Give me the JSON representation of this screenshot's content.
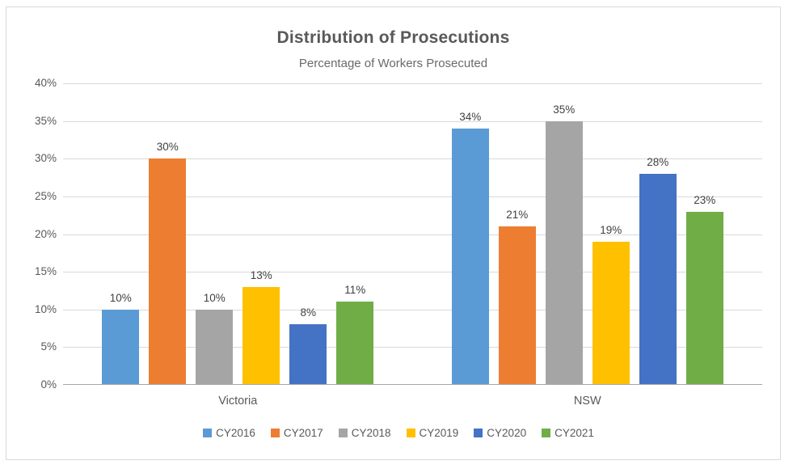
{
  "chart_data": {
    "type": "bar",
    "title": "Distribution of Prosecutions",
    "subtitle": "Percentage of Workers Prosecuted",
    "categories": [
      "Victoria",
      "NSW"
    ],
    "series": [
      {
        "name": "CY2016",
        "color": "#5B9BD5",
        "values": [
          10,
          34
        ]
      },
      {
        "name": "CY2017",
        "color": "#ED7D31",
        "values": [
          30,
          21
        ]
      },
      {
        "name": "CY2018",
        "color": "#A5A5A5",
        "values": [
          10,
          35
        ]
      },
      {
        "name": "CY2019",
        "color": "#FFC000",
        "values": [
          13,
          19
        ]
      },
      {
        "name": "CY2020",
        "color": "#4472C4",
        "values": [
          8,
          28
        ]
      },
      {
        "name": "CY2021",
        "color": "#70AD47",
        "values": [
          11,
          23
        ]
      }
    ],
    "data_labels": [
      [
        "10%",
        "30%",
        "10%",
        "13%",
        "8%",
        "11%"
      ],
      [
        "34%",
        "21%",
        "35%",
        "19%",
        "28%",
        "23%"
      ]
    ],
    "ylabel": "",
    "xlabel": "",
    "ylim": [
      0,
      40
    ],
    "ytick_step": 5,
    "ytick_labels": [
      "0%",
      "5%",
      "10%",
      "15%",
      "20%",
      "25%",
      "30%",
      "35%",
      "40%"
    ],
    "grid": true,
    "legend_position": "bottom",
    "legend": [
      "CY2016",
      "CY2017",
      "CY2018",
      "CY2019",
      "CY2020",
      "CY2021"
    ]
  }
}
